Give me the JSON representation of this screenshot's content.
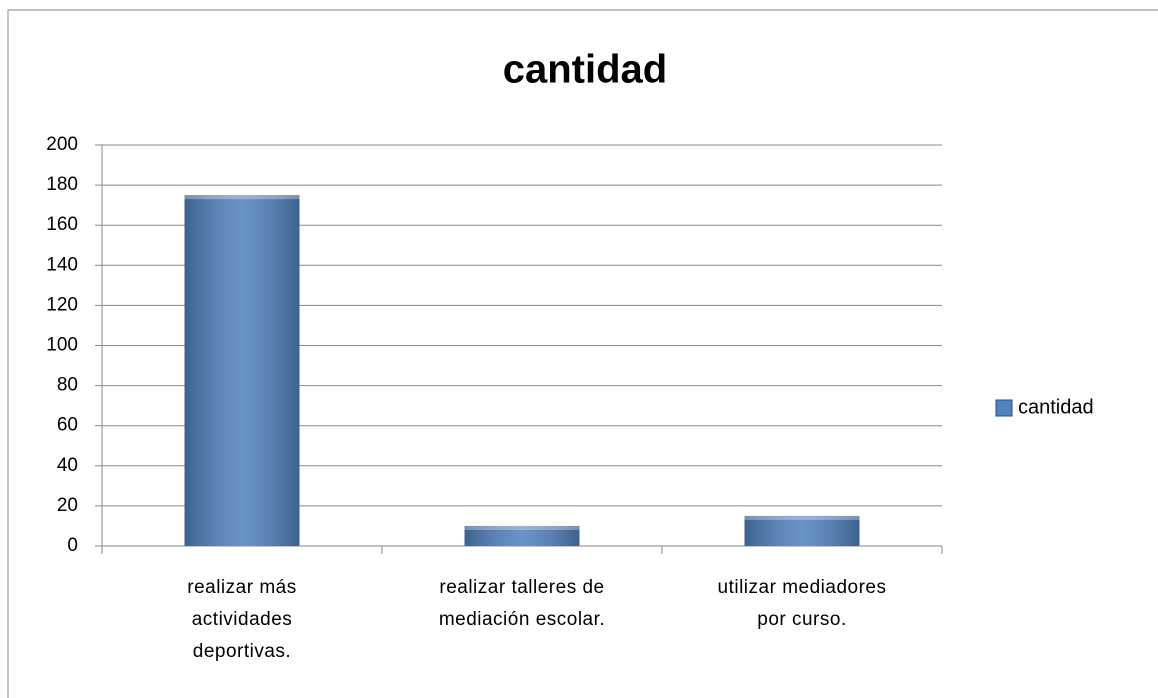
{
  "chart_data": {
    "type": "bar",
    "title": "cantidad",
    "categories": [
      "realizar más actividades deportivas.",
      "realizar talleres de mediación escolar.",
      "utilizar mediadores por curso."
    ],
    "series": [
      {
        "name": "cantidad",
        "color": "#4f81bd",
        "values": [
          175,
          10,
          15
        ]
      }
    ],
    "ylim": [
      0,
      200
    ],
    "yticks": [
      0,
      20,
      40,
      60,
      80,
      100,
      120,
      140,
      160,
      180,
      200
    ],
    "grid": true,
    "legend": "right"
  }
}
